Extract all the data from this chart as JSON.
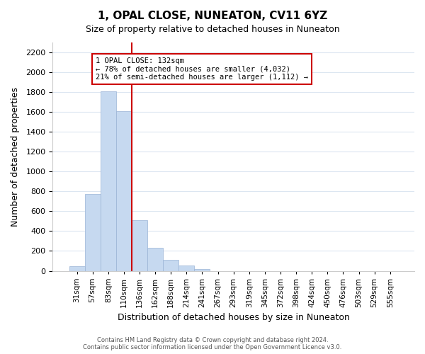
{
  "title": "1, OPAL CLOSE, NUNEATON, CV11 6YZ",
  "subtitle": "Size of property relative to detached houses in Nuneaton",
  "xlabel": "Distribution of detached houses by size in Nuneaton",
  "ylabel": "Number of detached properties",
  "bar_labels": [
    "31sqm",
    "57sqm",
    "83sqm",
    "110sqm",
    "136sqm",
    "162sqm",
    "188sqm",
    "214sqm",
    "241sqm",
    "267sqm",
    "293sqm",
    "319sqm",
    "345sqm",
    "372sqm",
    "398sqm",
    "424sqm",
    "450sqm",
    "476sqm",
    "503sqm",
    "529sqm",
    "555sqm"
  ],
  "bar_values": [
    50,
    775,
    1810,
    1610,
    510,
    230,
    110,
    55,
    20,
    0,
    0,
    0,
    0,
    0,
    0,
    0,
    0,
    0,
    0,
    0,
    0
  ],
  "bar_color": "#c6d9f0",
  "bar_edge_color": "#9ab3d5",
  "vline_index": 4,
  "vline_color": "#cc0000",
  "annotation_title": "1 OPAL CLOSE: 132sqm",
  "annotation_line1": "← 78% of detached houses are smaller (4,032)",
  "annotation_line2": "21% of semi-detached houses are larger (1,112) →",
  "annotation_box_color": "#ffffff",
  "annotation_box_edge": "#cc0000",
  "ylim": [
    0,
    2300
  ],
  "yticks": [
    0,
    200,
    400,
    600,
    800,
    1000,
    1200,
    1400,
    1600,
    1800,
    2000,
    2200
  ],
  "footer1": "Contains HM Land Registry data © Crown copyright and database right 2024.",
  "footer2": "Contains public sector information licensed under the Open Government Licence v3.0.",
  "bg_color": "#ffffff",
  "grid_color": "#dce6f1"
}
